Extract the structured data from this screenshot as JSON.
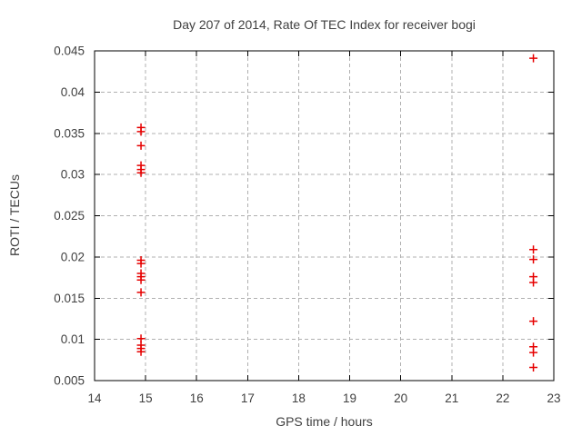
{
  "page": {
    "background": "#ffffff"
  },
  "chart_data": {
    "type": "scatter",
    "title": "Day 207 of 2014, Rate Of TEC Index for receiver bogi",
    "xlabel": "GPS time / hours",
    "ylabel": "ROTI / TECUs",
    "xlim": [
      14,
      23
    ],
    "ylim": [
      0.005,
      0.045
    ],
    "xticks": [
      14,
      15,
      16,
      17,
      18,
      19,
      20,
      21,
      22,
      23
    ],
    "xtick_labels": [
      "14",
      "15",
      "16",
      "17",
      "18",
      "19",
      "20",
      "21",
      "22",
      "23"
    ],
    "yticks": [
      0.005,
      0.01,
      0.015,
      0.02,
      0.025,
      0.03,
      0.035,
      0.04,
      0.045
    ],
    "ytick_labels": [
      "0.005",
      "0.01",
      "0.015",
      "0.02",
      "0.025",
      "0.03",
      "0.035",
      "0.04",
      "0.045"
    ],
    "grid": {
      "show": true,
      "style": "dashed",
      "color": "#b0b0b0"
    },
    "legend": "none",
    "frame_color": "#000000",
    "text_color": "#404040",
    "marker": {
      "shape": "plus",
      "color": "#e60000",
      "size": 9,
      "stroke_width": 1.5
    },
    "series": [
      {
        "name": "ROTI",
        "points": [
          [
            14.91,
            0.0357
          ],
          [
            14.91,
            0.0352
          ],
          [
            14.91,
            0.0335
          ],
          [
            14.91,
            0.0311
          ],
          [
            14.91,
            0.0306
          ],
          [
            14.91,
            0.0302
          ],
          [
            14.91,
            0.0196
          ],
          [
            14.91,
            0.0192
          ],
          [
            14.91,
            0.018
          ],
          [
            14.91,
            0.0176
          ],
          [
            14.91,
            0.0172
          ],
          [
            14.91,
            0.0157
          ],
          [
            14.91,
            0.0101
          ],
          [
            14.91,
            0.0093
          ],
          [
            14.91,
            0.0089
          ],
          [
            14.91,
            0.0085
          ],
          [
            22.6,
            0.0441
          ],
          [
            22.6,
            0.0209
          ],
          [
            22.6,
            0.0197
          ],
          [
            22.6,
            0.0176
          ],
          [
            22.6,
            0.0169
          ],
          [
            22.6,
            0.0122
          ],
          [
            22.6,
            0.0091
          ],
          [
            22.6,
            0.0084
          ],
          [
            22.6,
            0.0066
          ]
        ]
      }
    ]
  }
}
